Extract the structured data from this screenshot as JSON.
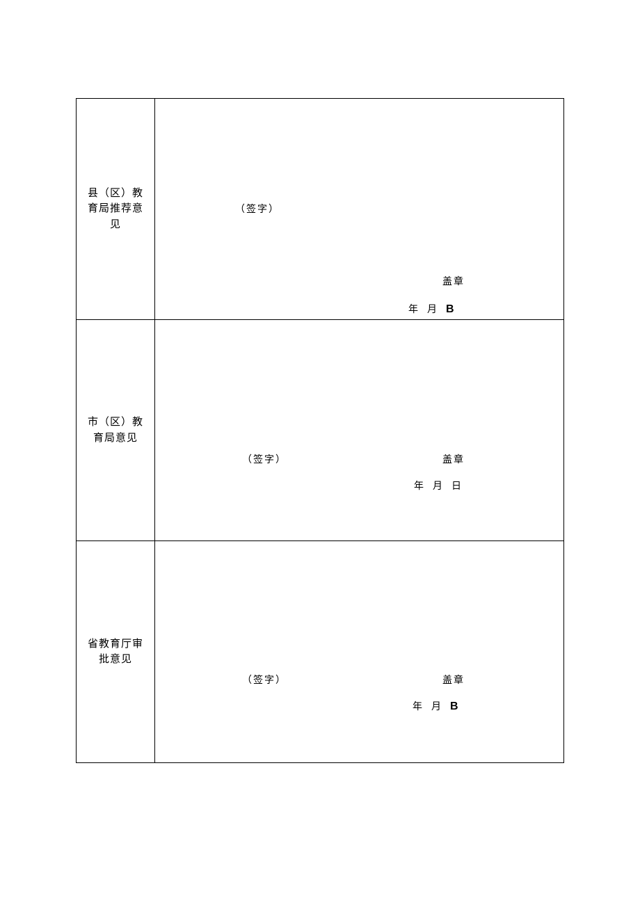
{
  "table": {
    "background_color": "#ffffff",
    "border_color": "#000000",
    "text_color": "#000000",
    "rows": [
      {
        "label": "县（区）教育局推荐意见",
        "signature": "（签字）",
        "stamp": "盖章",
        "date_year": "年",
        "date_month": "月",
        "date_day": "B"
      },
      {
        "label": "市（区）教育局意见",
        "signature": "（签字）",
        "stamp": "盖章",
        "date_year": "年",
        "date_month": "月",
        "date_day": "日"
      },
      {
        "label": "省教育厅审批意见",
        "signature": "（签字）",
        "stamp": "盖章",
        "date_year": "年",
        "date_month": "月",
        "date_day": "B"
      }
    ]
  }
}
